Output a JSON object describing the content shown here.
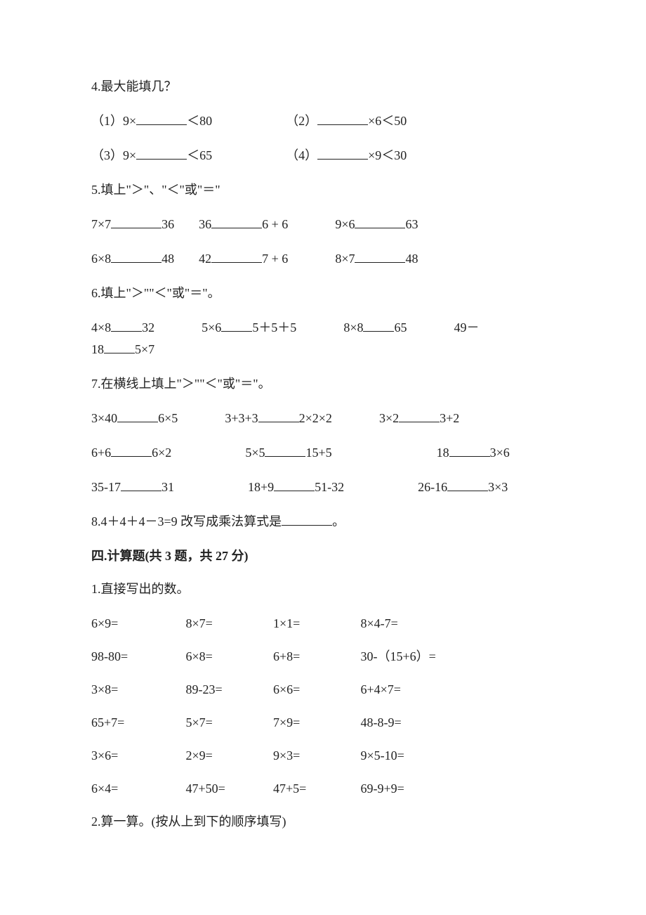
{
  "q4": {
    "title": "4.最大能填几？",
    "items": [
      {
        "label": "（1）9×",
        "tail": "＜80"
      },
      {
        "label": "（2）",
        "tail": "×6＜50"
      },
      {
        "label": "（3）9×",
        "tail": "＜65"
      },
      {
        "label": "（4）",
        "tail": "×9＜30"
      }
    ]
  },
  "q5": {
    "title": "5.填上\"＞\"、\"＜\"或\"＝\"",
    "row1": {
      "a_left": "7×7",
      "a_right": "36",
      "b_left": "36",
      "b_right": "6 + 6",
      "c_left": "9×6",
      "c_right": "63"
    },
    "row2": {
      "a_left": "6×8",
      "a_right": "48",
      "b_left": "42",
      "b_right": "7 + 6",
      "c_left": "8×7",
      "c_right": "48"
    }
  },
  "q6": {
    "title": "6.填上\"＞\"\"＜\"或\"＝\"。",
    "row1": {
      "a_left": "4×8",
      "a_right": "32",
      "b_left": "5×6",
      "b_right": "5＋5＋5",
      "c_left": "8×8",
      "c_right": "65",
      "d_left": "49－"
    },
    "row2_left": "18",
    "row2_right": "5×7"
  },
  "q7": {
    "title": "7.在横线上填上\"＞\"\"＜\"或\"＝\"。",
    "r1": {
      "a_left": "3×40",
      "a_right": "6×5",
      "b_left": "3+3+3",
      "b_right": "2×2×2",
      "c_left": "3×2",
      "c_right": "3+2"
    },
    "r2": {
      "a_left": "6+6",
      "a_right": "6×2",
      "b_left": "5×5",
      "b_right": "15+5",
      "c_left": "18",
      "c_right": "3×6"
    },
    "r3": {
      "a_left": "35-17",
      "a_right": "31",
      "b_left": "18+9",
      "b_right": "51-32",
      "c_left": "26-16",
      "c_right": "3×3"
    }
  },
  "q8": {
    "text_before": "8.4＋4＋4－3=9 改写成乘法算式是",
    "text_after": "。"
  },
  "section4": {
    "title": "四.计算题(共 3 题，共 27 分)"
  },
  "calc1": {
    "title": "1.直接写出的数。",
    "rows": [
      [
        "6×9=",
        "8×7=",
        "1×1=",
        "8×4-7="
      ],
      [
        "98-80=",
        "6×8=",
        "6+8=",
        "30-（15+6）="
      ],
      [
        "3×8=",
        "89-23=",
        "6×6=",
        "6+4×7="
      ],
      [
        "65+7=",
        "5×7=",
        "7×9=",
        "48-8-9="
      ],
      [
        "3×6=",
        "2×9=",
        "9×3=",
        "9×5-10="
      ],
      [
        "6×4=",
        "47+50=",
        "47+5=",
        "69-9+9="
      ]
    ]
  },
  "calc2": {
    "title": "2.算一算。(按从上到下的顺序填写)"
  }
}
